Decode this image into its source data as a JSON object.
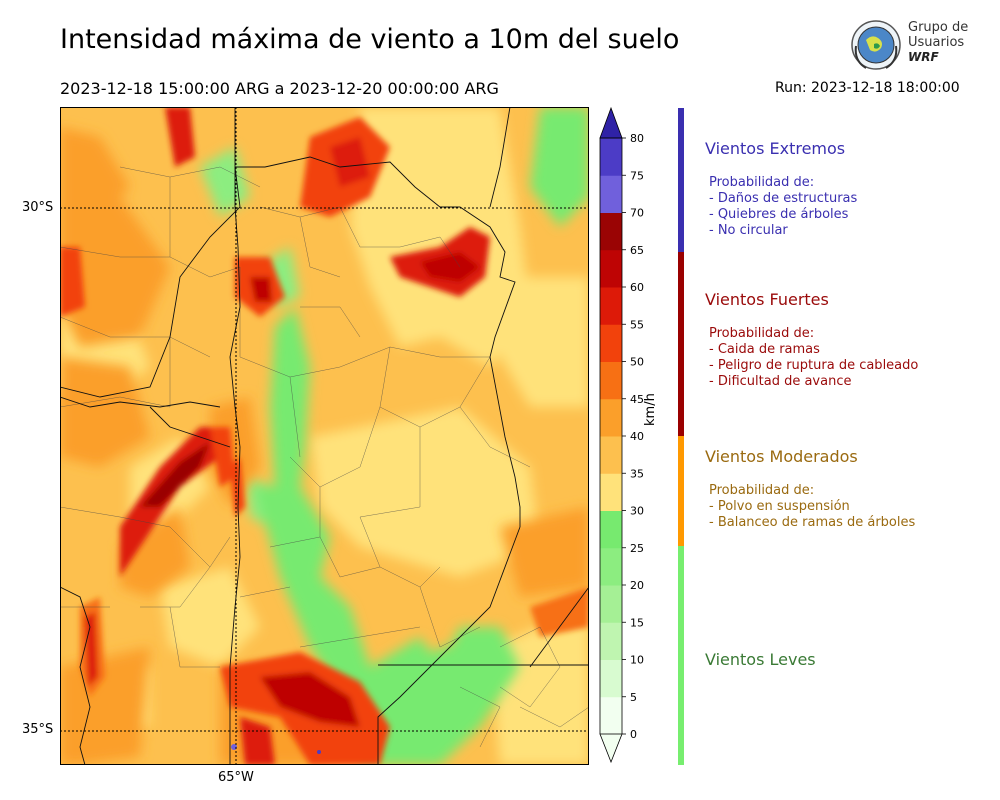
{
  "header": {
    "title": "Intensidad máxima de viento a 10m del suelo",
    "period": "2023-12-18 15:00:00 ARG  a  2023-12-20 00:00:00 ARG",
    "run": "Run: 2023-12-18 18:00:00"
  },
  "logo": {
    "line1": "Grupo de",
    "line2": "Usuarios",
    "line3": "WRF"
  },
  "map": {
    "lat_labels": [
      "30°S",
      "35°S"
    ],
    "lon_labels": [
      "65°W"
    ]
  },
  "colorbar": {
    "unit": "km/h",
    "ticks": [
      "0",
      "5",
      "10",
      "15",
      "20",
      "25",
      "30",
      "35",
      "40",
      "45",
      "50",
      "55",
      "60",
      "65",
      "70",
      "75",
      "80"
    ],
    "colors": [
      "#f2fff0",
      "#d8fbd0",
      "#bff5b0",
      "#a5f095",
      "#8ced80",
      "#77ea6f",
      "#ffe27a",
      "#fdc04e",
      "#fb9f2a",
      "#f77014",
      "#f2420c",
      "#dd1a08",
      "#be0404",
      "#9a0404",
      "#7060dc",
      "#4c3cc6",
      "#2f22a6"
    ]
  },
  "legend": {
    "categories": [
      {
        "title": "Vientos Extremos",
        "color": "#3a2fb0",
        "lines": [
          "Probabilidad de:",
          "- Daños de estructuras",
          "- Quiebres de árboles",
          "- No circular"
        ]
      },
      {
        "title": "Vientos Fuertes",
        "color": "#9a0a0a",
        "lines": [
          "Probabilidad de:",
          "- Caida de ramas",
          "- Peligro de ruptura de cableado",
          "- Dificultad de avance"
        ]
      },
      {
        "title": "Vientos Moderados",
        "color": "#9a6a10",
        "lines": [
          "Probabilidad de:",
          "- Polvo en suspensión",
          "- Balanceo de ramas de árboles"
        ]
      },
      {
        "title": "Vientos Leves",
        "color": "#3a7a35",
        "lines": []
      }
    ],
    "bar_colors": [
      "#3a2fb0",
      "#9a0000",
      "#ff9900",
      "#77ee6f"
    ]
  }
}
